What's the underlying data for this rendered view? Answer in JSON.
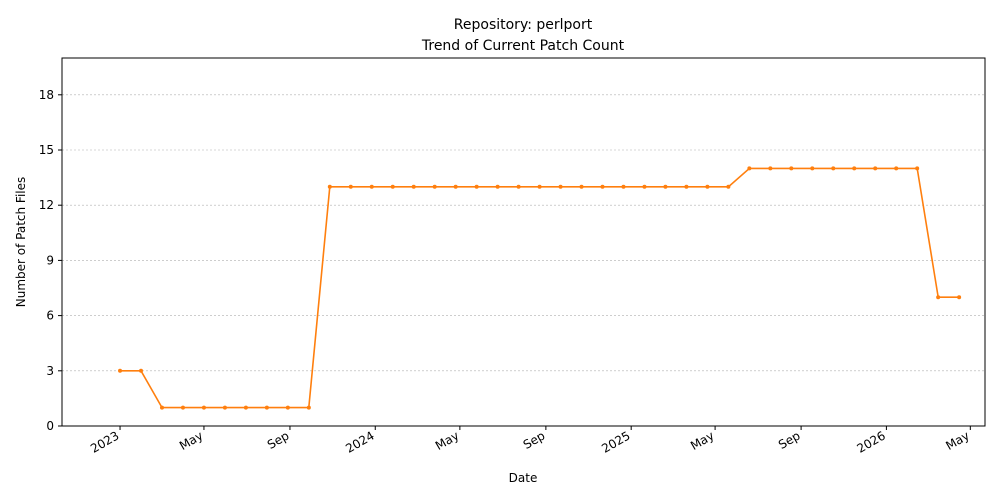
{
  "chart_data": {
    "type": "line",
    "title": "Repository: perlport",
    "subtitle": "Trend of Current Patch Count",
    "xlabel": "Date",
    "ylabel": "Number of Patch Files",
    "ylim": [
      0,
      20
    ],
    "xlim": [
      "2022-10-10",
      "2026-05-22"
    ],
    "yticks": [
      0,
      3,
      6,
      9,
      12,
      15,
      18
    ],
    "xticks": [
      {
        "date": "2023-01-01",
        "label": "2023"
      },
      {
        "date": "2023-05-01",
        "label": "May"
      },
      {
        "date": "2023-09-01",
        "label": "Sep"
      },
      {
        "date": "2024-01-01",
        "label": "2024"
      },
      {
        "date": "2024-05-01",
        "label": "May"
      },
      {
        "date": "2024-09-01",
        "label": "Sep"
      },
      {
        "date": "2025-01-01",
        "label": "2025"
      },
      {
        "date": "2025-05-01",
        "label": "May"
      },
      {
        "date": "2025-09-01",
        "label": "Sep"
      },
      {
        "date": "2026-01-01",
        "label": "2026"
      },
      {
        "date": "2026-05-01",
        "label": "May"
      }
    ],
    "grid": {
      "y": true,
      "x": false
    },
    "line_color": "#ff7f0e",
    "grid_color": "#b0b0b0",
    "series": [
      {
        "name": "",
        "x": [
          "2023-01-01",
          "2023-01-31",
          "2023-03-02",
          "2023-04-01",
          "2023-05-01",
          "2023-05-31",
          "2023-06-30",
          "2023-07-30",
          "2023-08-29",
          "2023-09-28",
          "2023-10-28",
          "2023-11-27",
          "2023-12-27",
          "2024-01-26",
          "2024-02-25",
          "2024-03-26",
          "2024-04-25",
          "2024-05-25",
          "2024-06-24",
          "2024-07-24",
          "2024-08-23",
          "2024-09-22",
          "2024-10-22",
          "2024-11-21",
          "2024-12-21",
          "2025-01-20",
          "2025-02-19",
          "2025-03-21",
          "2025-04-20",
          "2025-05-20",
          "2025-06-19",
          "2025-07-19",
          "2025-08-18",
          "2025-09-17",
          "2025-10-17",
          "2025-11-16",
          "2025-12-16",
          "2026-01-15",
          "2026-02-14",
          "2026-03-16",
          "2026-04-15"
        ],
        "values": [
          3,
          3,
          1,
          1,
          1,
          1,
          1,
          1,
          1,
          1,
          13,
          13,
          13,
          13,
          13,
          13,
          13,
          13,
          13,
          13,
          13,
          13,
          13,
          13,
          13,
          13,
          13,
          13,
          13,
          13,
          14,
          14,
          14,
          14,
          14,
          14,
          14,
          14,
          14,
          7,
          7
        ]
      }
    ]
  }
}
